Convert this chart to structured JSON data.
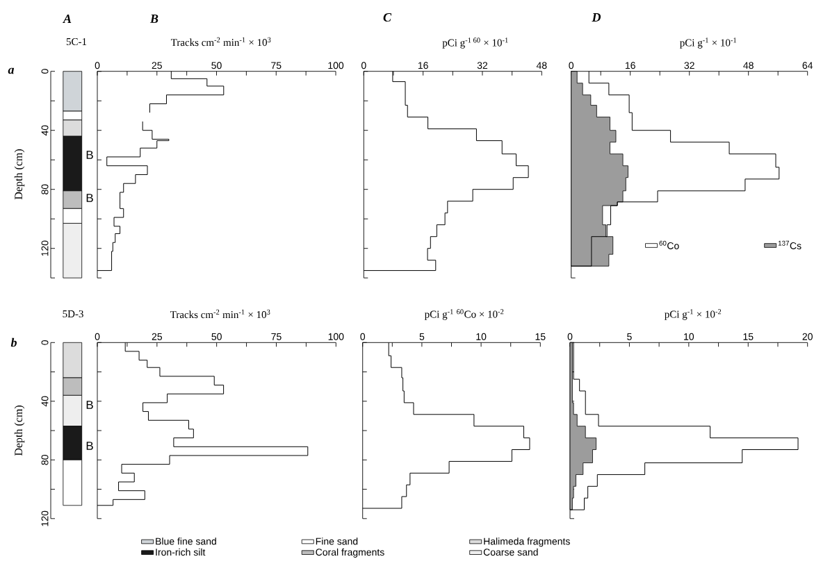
{
  "chart_data": [
    {
      "type": "bar",
      "stacked": true,
      "title": "A",
      "subtitle": "5C-1",
      "ylabel": "Depth (cm)",
      "categories": [
        null
      ],
      "ylim": [
        140,
        0
      ],
      "yticks": [
        0,
        {
          "value": 20,
          "label": null
        },
        40,
        {
          "value": 60,
          "label": null
        },
        80,
        {
          "value": 100,
          "label": null
        },
        120,
        {
          "value": 140,
          "label": null
        }
      ],
      "tick_labels": "y",
      "legend": "bottom",
      "annotations": [
        "a",
        "B",
        "B"
      ],
      "series": [
        {
          "name": "Blue fine sand",
          "color": "#cfd4d8",
          "values": [
            27
          ]
        },
        {
          "name": "Fine sand",
          "color": "#ffffff",
          "values": [
            6
          ]
        },
        {
          "name": "Halimeda fragments",
          "color": "#dcdcdc",
          "values": [
            11
          ]
        },
        {
          "name": "Iron-rich silt",
          "color": "#1a1a1a",
          "values": [
            37
          ]
        },
        {
          "name": "Coral fragments",
          "color": "#bdbdbd",
          "values": [
            12
          ]
        },
        {
          "color": "#ffffff",
          "values": [
            10
          ]
        },
        {
          "name": "Coarse sand",
          "color": "#eeeeee",
          "values": [
            37
          ]
        }
      ]
    },
    {
      "type": "step",
      "orientation": "horizontal",
      "title": "B",
      "xlabel": "Tracks cm$^{-2}$ min$^{-1}$ × 10$^{3}$",
      "xlim": [
        0,
        100
      ],
      "xticks": [
        0,
        {
          "value": 12.5,
          "label": null
        },
        25,
        {
          "value": 37.5,
          "label": null
        },
        50,
        {
          "value": 62.5,
          "label": null
        },
        75,
        {
          "value": 87.5,
          "label": null
        },
        100
      ],
      "ylim": [
        140,
        0
      ],
      "yticks": [
        0,
        {
          "value": 20,
          "label": null
        },
        40,
        {
          "value": 60,
          "label": null
        },
        80,
        {
          "value": 100,
          "label": null
        },
        120,
        {
          "value": 140,
          "label": null
        }
      ],
      "tick_labels": "x",
      "series": [
        {
          "color": "#000000",
          "x": [
            0,
            5,
            10,
            16,
            22,
            28,
            34,
            40,
            46,
            47,
            52,
            58,
            64,
            70,
            76,
            82,
            93,
            99,
            105,
            110,
            116,
            122,
            135
          ],
          "values": [
            31,
            46,
            53,
            29,
            22,
            null,
            19,
            23,
            30,
            25,
            18,
            4,
            21,
            16,
            11,
            9.5,
            11,
            7,
            9.5,
            7.5,
            6.5,
            6,
            0
          ]
        }
      ]
    },
    {
      "type": "step",
      "orientation": "horizontal",
      "title": "C",
      "xlabel": "pCi g$^{-1 60}$ × 10$^{-1}$",
      "xlim": [
        0,
        48
      ],
      "xticks": [
        0,
        {
          "value": 8,
          "label": null
        },
        16,
        {
          "value": 24,
          "label": null
        },
        32,
        {
          "value": 40,
          "label": null
        },
        48
      ],
      "ylim": [
        140,
        0
      ],
      "yticks": [
        0,
        {
          "value": 20,
          "label": null
        },
        40,
        {
          "value": 60,
          "label": null
        },
        80,
        {
          "value": 100,
          "label": null
        },
        120,
        {
          "value": 140,
          "label": null
        }
      ],
      "tick_labels": "x",
      "series": [
        {
          "color": "#000000",
          "x": [
            0,
            7,
            23,
            31,
            39,
            47,
            56,
            64,
            72,
            80,
            88,
            96,
            104,
            112,
            120,
            128,
            135
          ],
          "values": [
            7.8,
            11.2,
            11.8,
            17.3,
            30.4,
            37.3,
            41.1,
            44.4,
            40.3,
            29.4,
            22.6,
            21.9,
            19.7,
            18,
            17.2,
            19.4,
            0
          ]
        }
      ]
    },
    {
      "type": "area",
      "orientation": "horizontal",
      "title": "D",
      "xlabel": "pCi g$^{-1}$ × 10$^{-1}$",
      "xlim": [
        0,
        64
      ],
      "xticks": [
        0,
        {
          "value": 8,
          "label": null
        },
        16,
        {
          "value": 24,
          "label": null
        },
        32,
        {
          "value": 40,
          "label": null
        },
        48,
        {
          "value": 56,
          "label": null
        },
        64
      ],
      "ylim": [
        140,
        0
      ],
      "yticks": [
        0,
        {
          "value": 20,
          "label": null
        },
        40,
        {
          "value": 60,
          "label": null
        },
        80,
        {
          "value": 100,
          "label": null
        },
        120,
        {
          "value": 140,
          "label": null
        }
      ],
      "tick_labels": "x",
      "legend": "bottom right",
      "series": [
        {
          "name": "$^{60}$Co",
          "type": "step",
          "color": "#000000",
          "x": [
            0,
            8,
            16,
            28,
            40,
            48,
            56,
            65,
            73,
            81,
            88.5,
            91,
            104,
            112,
            132
          ],
          "values": [
            4.8,
            10.2,
            15.7,
            16.5,
            26.9,
            42.8,
            55.4,
            56.3,
            47.1,
            23.4,
            12.5,
            10.7,
            9.7,
            5.5,
            0
          ]
        },
        {
          "name": "$^{137}$Cs",
          "type": "area",
          "color": "#9c9c9c",
          "x": [
            0,
            8,
            16,
            23,
            31,
            40,
            48,
            56,
            64,
            72,
            81,
            88.5,
            91,
            104,
            112,
            124,
            132
          ],
          "values": [
            1.6,
            3.1,
            5.3,
            6.9,
            10.5,
            12.1,
            10.5,
            14,
            15.4,
            14.8,
            14,
            12.5,
            8.5,
            9.4,
            11.3,
            10.2,
            0
          ]
        }
      ]
    },
    {
      "type": "bar",
      "stacked": true,
      "subtitle": "5D-3",
      "ylabel": "Depth (cm)",
      "categories": [
        null
      ],
      "ylim": [
        120,
        0
      ],
      "yticks": [
        0,
        {
          "value": 20,
          "label": null
        },
        40,
        {
          "value": 60,
          "label": null
        },
        80,
        {
          "value": 100,
          "label": null
        },
        120
      ],
      "tick_labels": "y",
      "annotations": [
        "b",
        "B",
        "B"
      ],
      "series": [
        {
          "color": "#dcdcdc",
          "values": [
            24
          ]
        },
        {
          "color": "#bdbdbd",
          "values": [
            12
          ]
        },
        {
          "color": "#eeeeee",
          "values": [
            21
          ]
        },
        {
          "color": "#1a1a1a",
          "values": [
            23
          ]
        },
        {
          "color": "#ffffff",
          "values": [
            31
          ]
        }
      ]
    },
    {
      "type": "step",
      "orientation": "horizontal",
      "xlabel": "Tracks cm$^{-2}$ min$^{-1}$ × 10$^{3}$",
      "xlim": [
        0,
        100
      ],
      "xticks": [
        0,
        {
          "value": 12.5,
          "label": null
        },
        25,
        {
          "value": 37.5,
          "label": null
        },
        50,
        {
          "value": 62.5,
          "label": null
        },
        75,
        {
          "value": 87.5,
          "label": null
        },
        100
      ],
      "ylim": [
        120,
        0
      ],
      "yticks": [
        0,
        {
          "value": 20,
          "label": null
        },
        40,
        {
          "value": 60,
          "label": null
        },
        80,
        {
          "value": 100,
          "label": null
        },
        120
      ],
      "tick_labels": "x",
      "series": [
        {
          "color": "#000000",
          "x": [
            0,
            6,
            12,
            17,
            23,
            29,
            35,
            41,
            47,
            53,
            59,
            65,
            71,
            77,
            83,
            89,
            95,
            101,
            107,
            111
          ],
          "values": [
            11.7,
            17.5,
            20.9,
            26.2,
            49,
            52.9,
            29.3,
            19.1,
            21.4,
            38.3,
            40.3,
            32,
            88.2,
            30.3,
            10.2,
            15.5,
            8.9,
            19.9,
            6.6,
            0
          ]
        }
      ]
    },
    {
      "type": "step",
      "orientation": "horizontal",
      "xlabel": "pCi g$^{-1}$ $^{60}$Co × 10$^{-2}$",
      "xlim": [
        0,
        15
      ],
      "xticks": [
        0,
        {
          "value": 2.5,
          "label": null
        },
        5,
        {
          "value": 7.5,
          "label": null
        },
        10,
        {
          "value": 12.5,
          "label": null
        },
        15
      ],
      "ylim": [
        120,
        0
      ],
      "yticks": [
        0,
        {
          "value": 20,
          "label": null
        },
        40,
        {
          "value": 60,
          "label": null
        },
        80,
        {
          "value": 100,
          "label": null
        },
        120
      ],
      "tick_labels": "x",
      "series": [
        {
          "color": "#000000",
          "x": [
            0,
            9,
            17,
            24,
            33,
            41,
            49,
            57,
            65,
            73,
            81,
            89,
            97,
            105,
            113
          ],
          "values": [
            2.2,
            2.4,
            3.3,
            3.4,
            3.5,
            4.3,
            9.4,
            13.6,
            14.1,
            12.6,
            7.3,
            4,
            3.7,
            3.3,
            0
          ]
        }
      ]
    },
    {
      "type": "area",
      "orientation": "horizontal",
      "xlabel": "pCi g$^{-1}$ × 10$^{-2}$",
      "xlim": [
        0,
        20
      ],
      "xticks": [
        0,
        {
          "value": 2.5,
          "label": null
        },
        5,
        {
          "value": 7.5,
          "label": null
        },
        10,
        {
          "value": 12.5,
          "label": null
        },
        15,
        {
          "value": 17.5,
          "label": null
        },
        20
      ],
      "ylim": [
        120,
        0
      ],
      "yticks": [
        0,
        {
          "value": 20,
          "label": null
        },
        40,
        {
          "value": 60,
          "label": null
        },
        80,
        {
          "value": 100,
          "label": null
        },
        120
      ],
      "tick_labels": "x",
      "series": [
        {
          "type": "step",
          "color": "#000000",
          "x": [
            0,
            25,
            33,
            49,
            57,
            65,
            73,
            82,
            90,
            98,
            106,
            114
          ],
          "values": [
            0.3,
            0.8,
            1.3,
            2.4,
            11.8,
            19.2,
            14.5,
            6.3,
            2.3,
            1.5,
            1.2,
            0
          ]
        },
        {
          "type": "area",
          "color": "#9c9c9c",
          "x": [
            0,
            41,
            49,
            57,
            65,
            73,
            82,
            90,
            98,
            106,
            114
          ],
          "values": [
            0.2,
            0.3,
            0.6,
            1.3,
            2.2,
            1.9,
            1.1,
            0.5,
            0.3,
            0.2,
            0
          ]
        }
      ]
    }
  ]
}
